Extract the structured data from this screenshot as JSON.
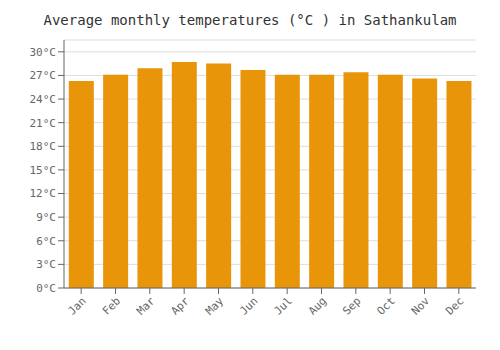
{
  "chart_data": {
    "type": "bar",
    "title": "Average monthly temperatures (°C ) in Sathankulam",
    "categories": [
      "Jan",
      "Feb",
      "Mar",
      "Apr",
      "May",
      "Jun",
      "Jul",
      "Aug",
      "Sep",
      "Oct",
      "Nov",
      "Dec"
    ],
    "values": [
      26.3,
      27.1,
      27.9,
      28.7,
      28.5,
      27.7,
      27.1,
      27.1,
      27.4,
      27.1,
      26.6,
      26.3
    ],
    "color": "#E8950A",
    "ylim": [
      0,
      31.5
    ],
    "yticks": [
      {
        "value": 0,
        "label": "0°C"
      },
      {
        "value": 3,
        "label": "3°C"
      },
      {
        "value": 6,
        "label": "6°C"
      },
      {
        "value": 9,
        "label": "9°C"
      },
      {
        "value": 12,
        "label": "12°C"
      },
      {
        "value": 15,
        "label": "15°C"
      },
      {
        "value": 18,
        "label": "18°C"
      },
      {
        "value": 21,
        "label": "21°C"
      },
      {
        "value": 24,
        "label": "24°C"
      },
      {
        "value": 27,
        "label": "27°C"
      },
      {
        "value": 30,
        "label": "30°C"
      }
    ],
    "grid": true
  }
}
